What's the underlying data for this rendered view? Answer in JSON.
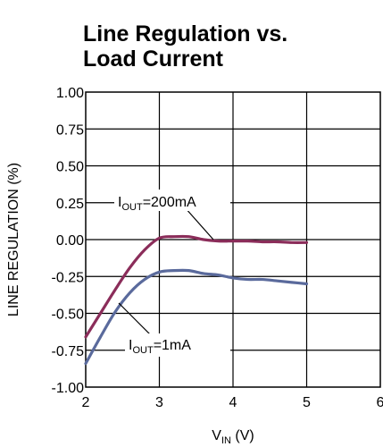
{
  "chart_data": {
    "type": "line",
    "title_line1": "Line Regulation vs.",
    "title_line2": "Load Current",
    "xlabel_main": "V",
    "xlabel_sub": "IN",
    "xlabel_unit": " (V)",
    "ylabel": "LINE REGULATION (%)",
    "xlim": [
      2,
      6
    ],
    "ylim": [
      -1.0,
      1.0
    ],
    "x_ticks": [
      "2",
      "3",
      "4",
      "5",
      "6"
    ],
    "y_ticks": [
      "1.00",
      "0.75",
      "0.50",
      "0.25",
      "0.00",
      "-0.25",
      "-0.50",
      "-0.75",
      "-1.00"
    ],
    "grid": true,
    "series": [
      {
        "name": "IOUT=200mA",
        "label_main": "I",
        "label_sub": "OUT",
        "label_rest": "=200mA",
        "color": "#8b2d5a",
        "x": [
          2.0,
          2.2,
          2.4,
          2.6,
          2.8,
          3.0,
          3.2,
          3.4,
          3.6,
          3.8,
          4.0,
          4.2,
          4.4,
          4.6,
          4.8,
          5.0
        ],
        "y": [
          -0.66,
          -0.5,
          -0.34,
          -0.19,
          -0.07,
          0.01,
          0.02,
          0.02,
          0.0,
          -0.01,
          -0.01,
          -0.01,
          -0.015,
          -0.015,
          -0.02,
          -0.02
        ]
      },
      {
        "name": "IOUT=1mA",
        "label_main": "I",
        "label_sub": "OUT",
        "label_rest": "=1mA",
        "color": "#5a6a9c",
        "x": [
          2.0,
          2.2,
          2.4,
          2.6,
          2.8,
          3.0,
          3.2,
          3.4,
          3.6,
          3.8,
          4.0,
          4.2,
          4.4,
          4.6,
          4.8,
          5.0
        ],
        "y": [
          -0.84,
          -0.66,
          -0.49,
          -0.36,
          -0.27,
          -0.22,
          -0.21,
          -0.21,
          -0.23,
          -0.24,
          -0.26,
          -0.27,
          -0.27,
          -0.28,
          -0.29,
          -0.3
        ]
      }
    ]
  }
}
